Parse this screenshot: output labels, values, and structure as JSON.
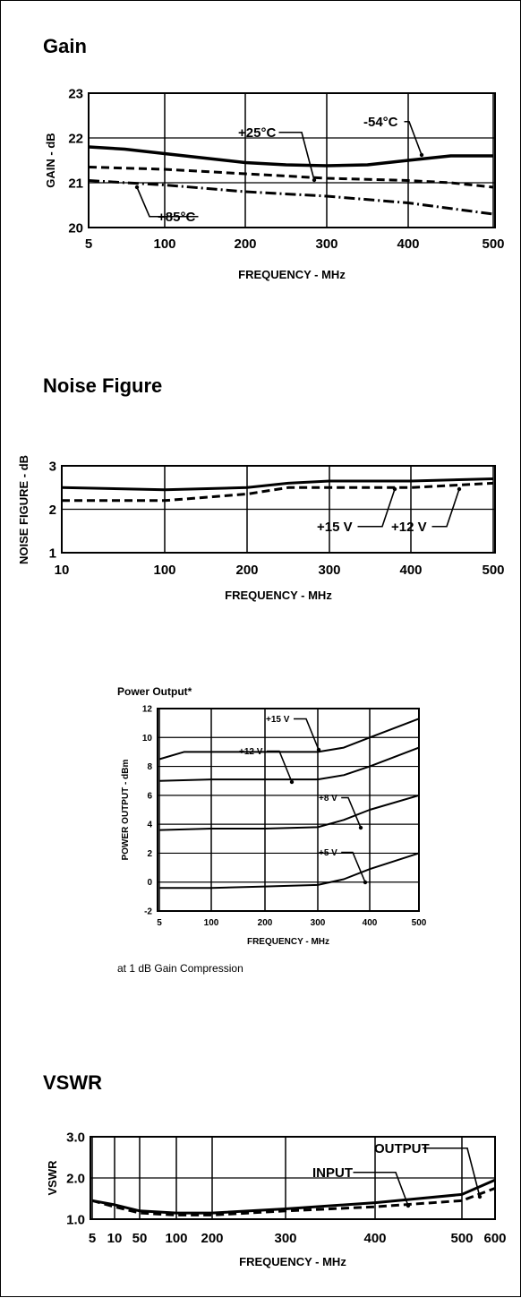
{
  "charts": [
    {
      "section_title": "Gain",
      "chart_data": {
        "type": "line",
        "title": "Gain",
        "xlabel": "FREQUENCY - MHz",
        "ylabel": "GAIN - dB",
        "xlim": [
          5,
          500
        ],
        "ylim": [
          20,
          23
        ],
        "x_ticks": [
          5,
          100,
          200,
          300,
          400,
          500
        ],
        "x_tick_labels": [
          "5",
          "100",
          "200",
          "300",
          "400",
          "500"
        ],
        "y_ticks": [
          20,
          21,
          22,
          23
        ],
        "y_tick_labels": [
          "20",
          "21",
          "22",
          "23"
        ],
        "grid": true,
        "series": [
          {
            "name": "-54°C",
            "style": "solid",
            "x": [
              5,
              50,
              100,
              150,
              200,
              250,
              300,
              350,
              400,
              450,
              500
            ],
            "y": [
              21.8,
              21.75,
              21.65,
              21.55,
              21.45,
              21.4,
              21.38,
              21.4,
              21.5,
              21.6,
              21.6
            ]
          },
          {
            "name": "+25°C",
            "style": "dashed",
            "x": [
              5,
              100,
              200,
              300,
              400,
              450,
              500
            ],
            "y": [
              21.35,
              21.3,
              21.2,
              21.1,
              21.05,
              21.0,
              20.9
            ]
          },
          {
            "name": "+85°C",
            "style": "dashdot",
            "x": [
              5,
              100,
              200,
              300,
              400,
              500
            ],
            "y": [
              21.05,
              20.95,
              20.8,
              20.7,
              20.55,
              20.3
            ]
          }
        ],
        "annotations": [
          "+25°C",
          "-54°C",
          "+85°C"
        ]
      }
    },
    {
      "section_title": "Noise Figure",
      "chart_data": {
        "type": "line",
        "title": "Noise Figure",
        "xlabel": "FREQUENCY - MHz",
        "ylabel": "NOISE FIGURE - dB",
        "xlim": [
          10,
          500
        ],
        "ylim": [
          1,
          3
        ],
        "x_ticks": [
          10,
          100,
          200,
          300,
          400,
          500
        ],
        "x_tick_labels": [
          "10",
          "100",
          "200",
          "300",
          "400",
          "500"
        ],
        "y_ticks": [
          1,
          2,
          3
        ],
        "y_tick_labels": [
          "1",
          "2",
          "3"
        ],
        "grid": true,
        "series": [
          {
            "name": "+15 V",
            "style": "solid",
            "x": [
              10,
              100,
              200,
              250,
              300,
              400,
              500
            ],
            "y": [
              2.5,
              2.45,
              2.5,
              2.6,
              2.65,
              2.65,
              2.7
            ]
          },
          {
            "name": "+12 V",
            "style": "dashed",
            "x": [
              10,
              100,
              200,
              250,
              300,
              400,
              500
            ],
            "y": [
              2.2,
              2.2,
              2.35,
              2.5,
              2.5,
              2.5,
              2.6
            ]
          }
        ],
        "annotations": [
          "+15 V",
          "+12 V"
        ]
      }
    },
    {
      "section_title": "Power Output*",
      "footnote": "at 1 dB Gain Compression",
      "chart_data": {
        "type": "line",
        "title": "Power Output*",
        "xlabel": "FREQUENCY - MHz",
        "ylabel": "POWER OUTPUT - dBm",
        "xlim": [
          5,
          500
        ],
        "ylim": [
          -2,
          12
        ],
        "x_ticks": [
          5,
          100,
          200,
          300,
          400,
          500
        ],
        "x_tick_labels": [
          "5",
          "100",
          "200",
          "300",
          "400",
          "500"
        ],
        "y_ticks": [
          -2,
          0,
          2,
          4,
          6,
          8,
          10,
          12
        ],
        "y_tick_labels": [
          "-2",
          "0",
          "2",
          "4",
          "6",
          "8",
          "10",
          "12"
        ],
        "grid": true,
        "series": [
          {
            "name": "+15 V",
            "style": "solid",
            "x": [
              5,
              50,
              100,
              200,
              300,
              350,
              400,
              500
            ],
            "y": [
              8.5,
              9.0,
              9.0,
              9.0,
              9.0,
              9.3,
              10.0,
              11.3
            ]
          },
          {
            "name": "+12 V",
            "style": "solid",
            "x": [
              5,
              100,
              200,
              300,
              350,
              400,
              500
            ],
            "y": [
              7.0,
              7.1,
              7.1,
              7.1,
              7.4,
              8.0,
              9.3
            ]
          },
          {
            "name": "+8 V",
            "style": "solid",
            "x": [
              5,
              100,
              200,
              300,
              350,
              400,
              500
            ],
            "y": [
              3.6,
              3.7,
              3.7,
              3.8,
              4.3,
              5.0,
              6.0
            ]
          },
          {
            "name": "+5 V",
            "style": "solid",
            "x": [
              5,
              100,
              200,
              300,
              350,
              400,
              500
            ],
            "y": [
              -0.4,
              -0.4,
              -0.3,
              -0.2,
              0.2,
              0.9,
              2.0
            ]
          }
        ],
        "annotations": [
          "+15 V",
          "+12 V",
          "+8 V",
          "+5 V"
        ]
      }
    },
    {
      "section_title": "VSWR",
      "chart_data": {
        "type": "line",
        "title": "VSWR",
        "xlabel": "FREQUENCY - MHz",
        "ylabel": "VSWR",
        "xlim": [
          5,
          600
        ],
        "ylim": [
          1.0,
          3.0
        ],
        "x_ticks": [
          5,
          10,
          50,
          100,
          200,
          300,
          400,
          500,
          600
        ],
        "x_tick_labels": [
          "5",
          "10",
          "50",
          "100",
          "200",
          "300",
          "400",
          "500",
          "600"
        ],
        "y_ticks": [
          1.0,
          2.0,
          3.0
        ],
        "y_tick_labels": [
          "1.0",
          "2.0",
          "3.0"
        ],
        "grid": true,
        "series": [
          {
            "name": "OUTPUT",
            "style": "solid",
            "x": [
              5,
              10,
              50,
              100,
              200,
              300,
              400,
              500,
              600
            ],
            "y": [
              1.45,
              1.35,
              1.2,
              1.15,
              1.15,
              1.25,
              1.4,
              1.6,
              1.95
            ]
          },
          {
            "name": "INPUT",
            "style": "dashed",
            "x": [
              5,
              10,
              50,
              100,
              200,
              300,
              400,
              500,
              600
            ],
            "y": [
              1.45,
              1.3,
              1.15,
              1.1,
              1.1,
              1.2,
              1.3,
              1.45,
              1.75
            ]
          }
        ],
        "annotations": [
          "OUTPUT",
          "INPUT"
        ]
      }
    }
  ]
}
